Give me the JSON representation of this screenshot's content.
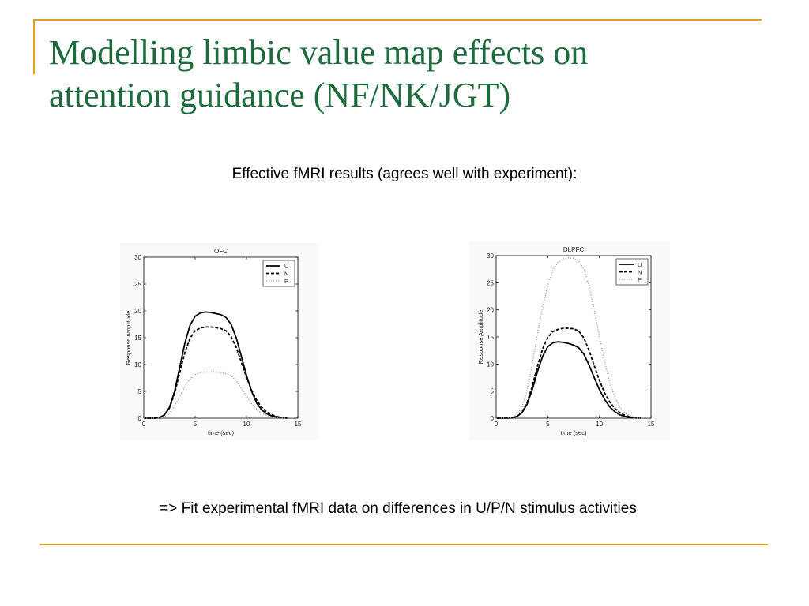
{
  "slide": {
    "title_line1": "Modelling limbic value map effects on",
    "title_line2": "attention guidance (NF/NK/JGT)",
    "subtitle": "Effective fMRI results (agrees well with experiment):",
    "footnote": "=> Fit experimental fMRI data on differences in U/P/N stimulus activities",
    "accent_color": "#e0a020",
    "title_color": "#1e6b3e"
  },
  "chart_data": [
    {
      "type": "line",
      "title": "OFC",
      "xlabel": "time (sec)",
      "ylabel": "Response Amplitude",
      "xlim": [
        0,
        15
      ],
      "ylim": [
        0,
        30
      ],
      "xticks": [
        0,
        5,
        10,
        15
      ],
      "yticks": [
        0,
        5,
        10,
        15,
        20,
        25,
        30
      ],
      "grid": false,
      "legend": "top-right",
      "x": [
        0,
        1,
        1.5,
        2,
        2.5,
        3,
        3.5,
        4,
        4.5,
        5,
        5.5,
        6,
        6.5,
        7,
        7.5,
        8,
        8.5,
        9,
        9.5,
        10,
        10.5,
        11,
        11.5,
        12,
        12.5,
        13,
        13.5,
        14
      ],
      "series": [
        {
          "name": "U",
          "style": "solid",
          "values": [
            0,
            0,
            0.1,
            0.6,
            2.0,
            5.0,
            9.5,
            14.0,
            17.3,
            19.0,
            19.6,
            19.8,
            19.7,
            19.5,
            19.3,
            18.8,
            17.5,
            15.0,
            11.5,
            8.0,
            5.0,
            2.8,
            1.5,
            0.8,
            0.4,
            0.2,
            0.1,
            0
          ]
        },
        {
          "name": "N",
          "style": "dashed",
          "values": [
            0,
            0,
            0.1,
            0.6,
            1.9,
            4.6,
            8.5,
            12.2,
            14.9,
            16.3,
            16.8,
            17.0,
            17.0,
            16.9,
            16.7,
            16.3,
            15.2,
            13.2,
            10.4,
            7.6,
            5.2,
            3.3,
            2.0,
            1.1,
            0.6,
            0.3,
            0.1,
            0
          ]
        },
        {
          "name": "P",
          "style": "dotted",
          "values": [
            0,
            0,
            0.1,
            0.3,
            0.9,
            2.2,
            4.1,
            5.9,
            7.3,
            8.1,
            8.5,
            8.6,
            8.6,
            8.6,
            8.5,
            8.3,
            7.9,
            7.0,
            5.6,
            4.1,
            2.7,
            1.6,
            0.9,
            0.5,
            0.2,
            0.1,
            0.05,
            0
          ]
        }
      ]
    },
    {
      "type": "line",
      "title": "DLPFC",
      "xlabel": "time (sec)",
      "ylabel": "Response Amplitude",
      "xlim": [
        0,
        15
      ],
      "ylim": [
        0,
        30
      ],
      "xticks": [
        0,
        5,
        10,
        15
      ],
      "yticks": [
        0,
        5,
        10,
        15,
        20,
        25,
        30
      ],
      "grid": false,
      "legend": "top-right",
      "x": [
        0,
        1,
        1.5,
        2,
        2.5,
        3,
        3.5,
        4,
        4.5,
        5,
        5.5,
        6,
        6.5,
        7,
        7.5,
        8,
        8.5,
        9,
        9.5,
        10,
        10.5,
        11,
        11.5,
        12,
        12.5,
        13,
        13.5,
        14
      ],
      "series": [
        {
          "name": "U",
          "style": "solid",
          "values": [
            0,
            0,
            0.05,
            0.3,
            1.0,
            2.6,
            5.3,
            8.6,
            11.4,
            13.2,
            13.9,
            14.1,
            14.0,
            13.8,
            13.5,
            13.0,
            11.8,
            9.8,
            7.5,
            5.3,
            3.5,
            2.1,
            1.2,
            0.6,
            0.3,
            0.1,
            0.05,
            0
          ]
        },
        {
          "name": "N",
          "style": "dashed",
          "values": [
            0,
            0,
            0.05,
            0.3,
            1.1,
            2.9,
            5.9,
            9.6,
            12.8,
            14.9,
            16.0,
            16.4,
            16.6,
            16.6,
            16.5,
            16.1,
            14.8,
            12.5,
            9.7,
            7.0,
            4.7,
            3.0,
            1.8,
            1.0,
            0.5,
            0.2,
            0.1,
            0
          ]
        },
        {
          "name": "P",
          "style": "dotted",
          "values": [
            0,
            0,
            0.1,
            0.6,
            2.0,
            5.2,
            10.0,
            15.5,
            20.5,
            24.5,
            27.3,
            28.8,
            29.4,
            29.6,
            29.5,
            29.0,
            27.5,
            24.5,
            20.0,
            15.0,
            10.5,
            6.6,
            3.9,
            2.0,
            0.9,
            0.4,
            0.1,
            0
          ]
        }
      ]
    }
  ]
}
